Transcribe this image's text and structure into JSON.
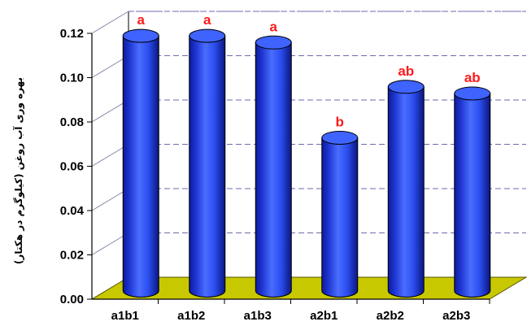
{
  "chart_data": {
    "type": "bar",
    "style": "3d-cylinder",
    "ylabel": "بهره وری آب روغن (کیلوگرم در هکتار)",
    "ylim": [
      0,
      0.12
    ],
    "yticks": [
      "0.00",
      "0.02",
      "0.04",
      "0.06",
      "0.08",
      "0.10",
      "0.12"
    ],
    "categories": [
      "a1b1",
      "a1b2",
      "a1b3",
      "a2b1",
      "a2b2",
      "a2b3"
    ],
    "values": [
      0.115,
      0.115,
      0.112,
      0.069,
      0.092,
      0.089
    ],
    "significance_letters": [
      "a",
      "a",
      "a",
      "b",
      "ab",
      "ab"
    ],
    "grid": true,
    "colors": {
      "bar": "#2b4ff0",
      "bar_dark": "#0d1a9a",
      "bar_top": "#3f63ff",
      "floor": "#c8c800",
      "grid": "#6b6bb0",
      "letters": "#ff1a1a"
    }
  }
}
